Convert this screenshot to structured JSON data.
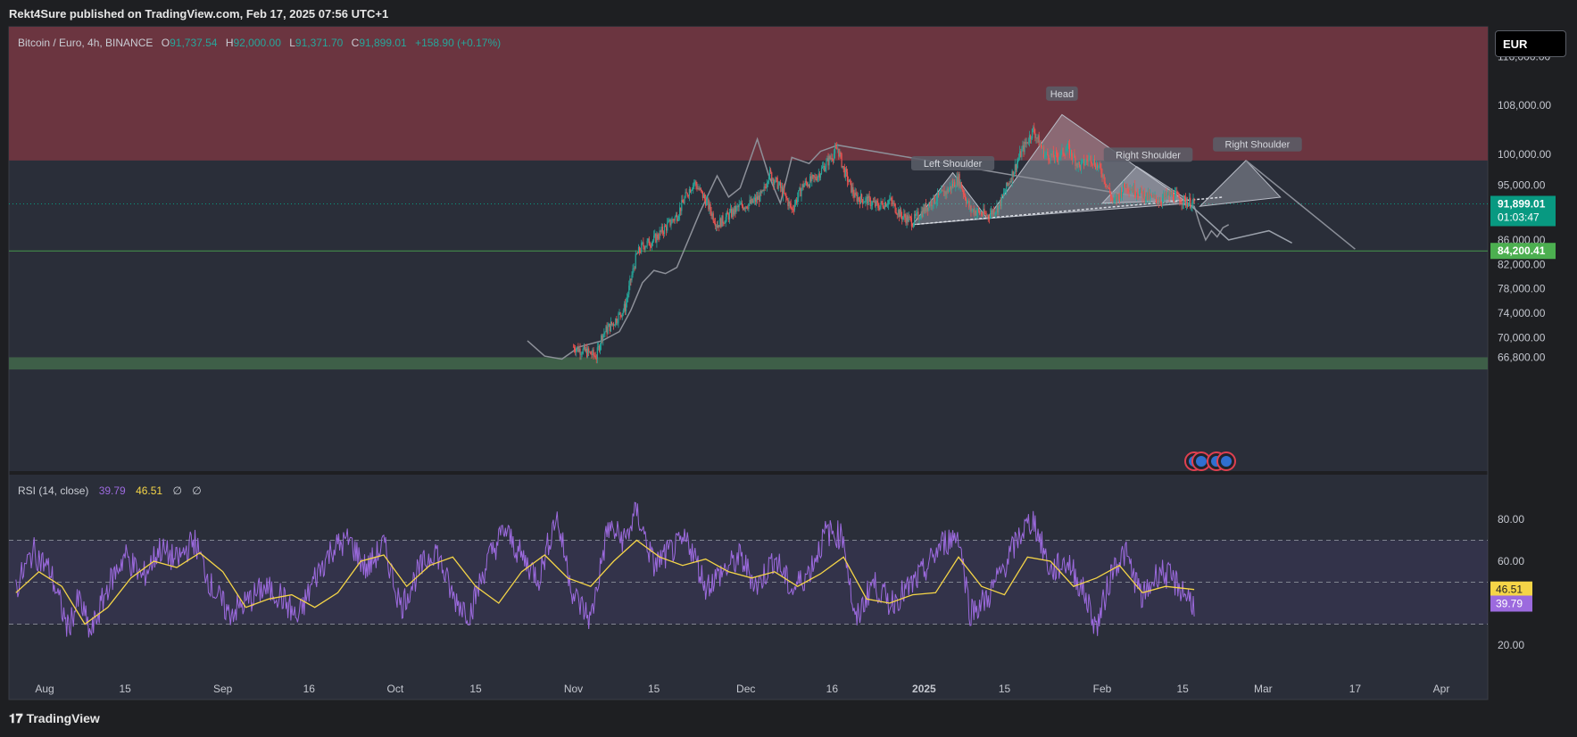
{
  "top": {
    "publisher_text": "Rekt4Sure published on TradingView.com, Feb 17, 2025 07:56 UTC+1"
  },
  "footer": {
    "logo_glyph": "𝟏𝟕",
    "brand": "TradingView"
  },
  "header": {
    "symbol": "Bitcoin / Euro, 4h, BINANCE",
    "o_label": "O",
    "o_value": "91,737.54",
    "h_label": "H",
    "h_value": "92,000.00",
    "l_label": "L",
    "l_value": "91,371.70",
    "c_label": "C",
    "c_value": "91,899.01",
    "change": "+158.90 (+0.17%)"
  },
  "currency_button": "EUR",
  "rsi_header": {
    "label": "RSI (14, close)",
    "rsi": "39.79",
    "ma": "46.51",
    "e1": "∅",
    "e2": "∅"
  },
  "colors": {
    "bg": "#1e1f22",
    "pane": "#2a2e39",
    "red_zone": "#6b3540",
    "green_zone": "#3e5f48",
    "up": "#26a69a",
    "down": "#ef5350",
    "rsi": "#9c6ade",
    "rsi_ma": "#f5d547",
    "last_price": "#089981",
    "support": "#4caf50"
  },
  "chart_data": [
    {
      "type": "candlestick",
      "title": "Bitcoin / Euro, 4h, BINANCE",
      "price_ticks": [
        "116,000.00",
        "108,000.00",
        "100,000.00",
        "95,000.00",
        "86,000.00",
        "82,000.00",
        "78,000.00",
        "74,000.00",
        "70,000.00",
        "66,800.00"
      ],
      "x_ticks": [
        "Aug",
        "15",
        "Sep",
        "16",
        "Oct",
        "15",
        "Nov",
        "15",
        "Dec",
        "16",
        "2025",
        "15",
        "Feb",
        "15",
        "Mar",
        "17",
        "Apr"
      ],
      "last_price": "91,899.01",
      "countdown": "01:03:47",
      "support_price": "84,200.41",
      "support_value": 84200.41,
      "last_value": 91899.01,
      "zones": [
        {
          "name": "resistance",
          "from": 99000,
          "to": 124000
        },
        {
          "name": "support",
          "from": 64800,
          "to": 66800
        }
      ],
      "pattern_labels": [
        "Left Shoulder",
        "Head",
        "Right Shoulder",
        "Right Shoulder"
      ],
      "close_path": [
        [
          "2024-11-01",
          68500
        ],
        [
          "2024-11-05",
          67000
        ],
        [
          "2024-11-06",
          70500
        ],
        [
          "2024-11-08",
          72500
        ],
        [
          "2024-11-10",
          75000
        ],
        [
          "2024-11-11",
          79500
        ],
        [
          "2024-11-12",
          83500
        ],
        [
          "2024-11-13",
          85000
        ],
        [
          "2024-11-15",
          86000
        ],
        [
          "2024-11-17",
          88000
        ],
        [
          "2024-11-19",
          90000
        ],
        [
          "2024-11-21",
          94000
        ],
        [
          "2024-11-22",
          95500
        ],
        [
          "2024-11-24",
          92500
        ],
        [
          "2024-11-26",
          88500
        ],
        [
          "2024-11-28",
          90000
        ],
        [
          "2024-11-30",
          91500
        ],
        [
          "2024-12-02",
          92000
        ],
        [
          "2024-12-04",
          93500
        ],
        [
          "2024-12-05",
          97000
        ],
        [
          "2024-12-07",
          94500
        ],
        [
          "2024-12-09",
          91000
        ],
        [
          "2024-12-11",
          95000
        ],
        [
          "2024-12-13",
          96000
        ],
        [
          "2024-12-15",
          98500
        ],
        [
          "2024-12-17",
          101000
        ],
        [
          "2024-12-18",
          97500
        ],
        [
          "2024-12-20",
          93000
        ],
        [
          "2024-12-22",
          92500
        ],
        [
          "2024-12-24",
          91500
        ],
        [
          "2024-12-26",
          92500
        ],
        [
          "2024-12-28",
          90000
        ],
        [
          "2024-12-30",
          89000
        ],
        [
          "2025-01-02",
          92000
        ],
        [
          "2025-01-05",
          94000
        ],
        [
          "2025-01-07",
          96000
        ],
        [
          "2025-01-09",
          91000
        ],
        [
          "2025-01-12",
          90000
        ],
        [
          "2025-01-14",
          91500
        ],
        [
          "2025-01-16",
          96000
        ],
        [
          "2025-01-18",
          100500
        ],
        [
          "2025-01-20",
          104000
        ],
        [
          "2025-01-22",
          100000
        ],
        [
          "2025-01-24",
          99500
        ],
        [
          "2025-01-26",
          101000
        ],
        [
          "2025-01-28",
          98000
        ],
        [
          "2025-01-30",
          99500
        ],
        [
          "2025-02-01",
          97000
        ],
        [
          "2025-02-03",
          92000
        ],
        [
          "2025-02-05",
          95000
        ],
        [
          "2025-02-07",
          94000
        ],
        [
          "2025-02-09",
          93000
        ],
        [
          "2025-02-11",
          92500
        ],
        [
          "2025-02-13",
          93500
        ],
        [
          "2025-02-15",
          92500
        ],
        [
          "2025-02-17",
          91899
        ]
      ],
      "fractal_path": [
        [
          "2024-10-24",
          69500
        ],
        [
          "2024-10-27",
          67000
        ],
        [
          "2024-10-30",
          66500
        ],
        [
          "2024-11-02",
          68500
        ],
        [
          "2024-11-06",
          69500
        ],
        [
          "2024-11-09",
          71000
        ],
        [
          "2024-11-11",
          74500
        ],
        [
          "2024-11-13",
          79000
        ],
        [
          "2024-11-15",
          81000
        ],
        [
          "2024-11-17",
          80500
        ],
        [
          "2024-11-19",
          81500
        ],
        [
          "2024-11-21",
          86000
        ],
        [
          "2024-11-23",
          90500
        ],
        [
          "2024-11-26",
          96500
        ],
        [
          "2024-11-28",
          93000
        ],
        [
          "2024-11-30",
          94500
        ],
        [
          "2024-12-03",
          102500
        ],
        [
          "2024-12-05",
          96500
        ],
        [
          "2024-12-07",
          92000
        ],
        [
          "2024-12-09",
          99500
        ],
        [
          "2024-12-12",
          98500
        ],
        [
          "2024-12-14",
          100500
        ],
        [
          "2024-12-17",
          101500
        ],
        [
          "2025-02-17",
          91500
        ],
        [
          "2025-02-18",
          88500
        ],
        [
          "2025-02-19",
          86000
        ],
        [
          "2025-02-20",
          87500
        ],
        [
          "2025-02-21",
          86500
        ],
        [
          "2025-02-22",
          88000
        ],
        [
          "2025-02-23",
          88500
        ]
      ],
      "hs_pattern": {
        "neckline": [
          [
            "2024-12-30",
            88500
          ],
          [
            "2025-02-22",
            93000
          ]
        ],
        "left_shoulder": [
          [
            "2024-12-30",
            88500
          ],
          [
            "2025-01-06",
            97000
          ],
          [
            "2025-01-12",
            89500
          ]
        ],
        "head": [
          [
            "2025-01-12",
            89500
          ],
          [
            "2025-01-25",
            106500
          ],
          [
            "2025-02-16",
            92000
          ]
        ],
        "right_shoulder_1": [
          [
            "2025-02-01",
            92000
          ],
          [
            "2025-02-07",
            98000
          ],
          [
            "2025-02-16",
            92500
          ]
        ],
        "right_shoulder_2": [
          [
            "2025-02-18",
            91500
          ],
          [
            "2025-02-26",
            99000
          ],
          [
            "2025-03-04",
            93000
          ]
        ],
        "projection": [
          [
            "2025-02-16",
            92000
          ],
          [
            "2025-02-23",
            86000
          ],
          [
            "2025-03-02",
            87500
          ],
          [
            "2025-03-06",
            85500
          ]
        ],
        "down_line": [
          [
            "2025-02-26",
            99000
          ],
          [
            "2025-03-17",
            84500
          ]
        ]
      }
    },
    {
      "type": "line",
      "title": "RSI (14, close)",
      "y_ticks": [
        "80.00",
        "60.00",
        "20.00"
      ],
      "levels": [
        70,
        50,
        30
      ],
      "rsi_last": "39.79",
      "ma_last": "46.51",
      "ma_points": [
        [
          "2024-07-27",
          45
        ],
        [
          "2024-07-31",
          55
        ],
        [
          "2024-08-04",
          48
        ],
        [
          "2024-08-08",
          30
        ],
        [
          "2024-08-12",
          38
        ],
        [
          "2024-08-16",
          52
        ],
        [
          "2024-08-20",
          60
        ],
        [
          "2024-08-24",
          57
        ],
        [
          "2024-08-28",
          64
        ],
        [
          "2024-09-01",
          55
        ],
        [
          "2024-09-05",
          38
        ],
        [
          "2024-09-09",
          42
        ],
        [
          "2024-09-13",
          44
        ],
        [
          "2024-09-17",
          38
        ],
        [
          "2024-09-21",
          45
        ],
        [
          "2024-09-25",
          60
        ],
        [
          "2024-09-29",
          63
        ],
        [
          "2024-10-03",
          48
        ],
        [
          "2024-10-07",
          58
        ],
        [
          "2024-10-11",
          62
        ],
        [
          "2024-10-15",
          48
        ],
        [
          "2024-10-19",
          40
        ],
        [
          "2024-10-23",
          55
        ],
        [
          "2024-10-27",
          63
        ],
        [
          "2024-10-31",
          52
        ],
        [
          "2024-11-04",
          48
        ],
        [
          "2024-11-08",
          60
        ],
        [
          "2024-11-12",
          70
        ],
        [
          "2024-11-16",
          62
        ],
        [
          "2024-11-20",
          58
        ],
        [
          "2024-11-24",
          61
        ],
        [
          "2024-11-28",
          55
        ],
        [
          "2024-12-02",
          52
        ],
        [
          "2024-12-06",
          55
        ],
        [
          "2024-12-10",
          48
        ],
        [
          "2024-12-14",
          54
        ],
        [
          "2024-12-18",
          62
        ],
        [
          "2024-12-22",
          42
        ],
        [
          "2024-12-26",
          40
        ],
        [
          "2024-12-30",
          44
        ],
        [
          "2025-01-03",
          45
        ],
        [
          "2025-01-07",
          62
        ],
        [
          "2025-01-11",
          48
        ],
        [
          "2025-01-15",
          44
        ],
        [
          "2025-01-19",
          62
        ],
        [
          "2025-01-23",
          60
        ],
        [
          "2025-01-27",
          48
        ],
        [
          "2025-01-31",
          52
        ],
        [
          "2025-02-04",
          58
        ],
        [
          "2025-02-08",
          45
        ],
        [
          "2025-02-12",
          48
        ],
        [
          "2025-02-17",
          46.51
        ]
      ],
      "rsi_points": [
        [
          "2024-07-27",
          47
        ],
        [
          "2024-07-30",
          65
        ],
        [
          "2024-08-02",
          55
        ],
        [
          "2024-08-05",
          28
        ],
        [
          "2024-08-07",
          42
        ],
        [
          "2024-08-09",
          25
        ],
        [
          "2024-08-12",
          48
        ],
        [
          "2024-08-15",
          63
        ],
        [
          "2024-08-18",
          52
        ],
        [
          "2024-08-21",
          66
        ],
        [
          "2024-08-24",
          60
        ],
        [
          "2024-08-27",
          70
        ],
        [
          "2024-08-30",
          48
        ],
        [
          "2024-09-02",
          35
        ],
        [
          "2024-09-05",
          40
        ],
        [
          "2024-09-08",
          47
        ],
        [
          "2024-09-11",
          44
        ],
        [
          "2024-09-14",
          32
        ],
        [
          "2024-09-17",
          52
        ],
        [
          "2024-09-20",
          66
        ],
        [
          "2024-09-23",
          70
        ],
        [
          "2024-09-26",
          56
        ],
        [
          "2024-09-29",
          68
        ],
        [
          "2024-10-02",
          38
        ],
        [
          "2024-10-05",
          55
        ],
        [
          "2024-10-08",
          66
        ],
        [
          "2024-10-11",
          43
        ],
        [
          "2024-10-14",
          35
        ],
        [
          "2024-10-17",
          60
        ],
        [
          "2024-10-20",
          75
        ],
        [
          "2024-10-23",
          62
        ],
        [
          "2024-10-26",
          52
        ],
        [
          "2024-10-29",
          82
        ],
        [
          "2024-11-01",
          44
        ],
        [
          "2024-11-04",
          32
        ],
        [
          "2024-11-07",
          76
        ],
        [
          "2024-11-10",
          70
        ],
        [
          "2024-11-12",
          84
        ],
        [
          "2024-11-15",
          58
        ],
        [
          "2024-11-18",
          65
        ],
        [
          "2024-11-21",
          70
        ],
        [
          "2024-11-24",
          48
        ],
        [
          "2024-11-27",
          55
        ],
        [
          "2024-11-30",
          62
        ],
        [
          "2024-12-03",
          48
        ],
        [
          "2024-12-06",
          62
        ],
        [
          "2024-12-09",
          46
        ],
        [
          "2024-12-12",
          55
        ],
        [
          "2024-12-15",
          74
        ],
        [
          "2024-12-18",
          72
        ],
        [
          "2024-12-20",
          30
        ],
        [
          "2024-12-23",
          50
        ],
        [
          "2024-12-26",
          40
        ],
        [
          "2024-12-29",
          46
        ],
        [
          "2025-01-01",
          55
        ],
        [
          "2025-01-04",
          68
        ],
        [
          "2025-01-07",
          73
        ],
        [
          "2025-01-09",
          36
        ],
        [
          "2025-01-12",
          42
        ],
        [
          "2025-01-15",
          58
        ],
        [
          "2025-01-18",
          74
        ],
        [
          "2025-01-20",
          80
        ],
        [
          "2025-01-23",
          55
        ],
        [
          "2025-01-26",
          60
        ],
        [
          "2025-01-29",
          44
        ],
        [
          "2025-01-31",
          28
        ],
        [
          "2025-02-03",
          58
        ],
        [
          "2025-02-05",
          64
        ],
        [
          "2025-02-08",
          42
        ],
        [
          "2025-02-11",
          56
        ],
        [
          "2025-02-14",
          49
        ],
        [
          "2025-02-17",
          39.79
        ]
      ]
    }
  ]
}
